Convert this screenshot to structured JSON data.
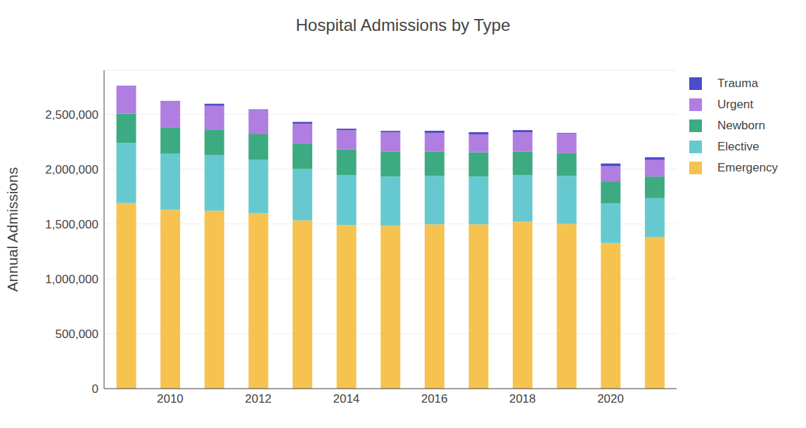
{
  "chart_data": {
    "type": "bar",
    "title": "Hospital Admissions by Type",
    "y_label": "Annual Admissions",
    "categories": [
      null,
      "2010",
      null,
      "2012",
      null,
      "2014",
      null,
      "2016",
      null,
      "2018",
      null,
      "2020",
      null
    ],
    "series": [
      {
        "name": "Emergency",
        "color": "#f6c350",
        "values": [
          1692000,
          1629000,
          1622000,
          1597000,
          1534000,
          1490000,
          1484000,
          1496000,
          1496000,
          1521000,
          1502000,
          1326000,
          1383000
        ]
      },
      {
        "name": "Elective",
        "color": "#66c9d0",
        "values": [
          549000,
          511000,
          505000,
          486000,
          467000,
          454000,
          448000,
          442000,
          436000,
          423000,
          436000,
          360000,
          353000
        ]
      },
      {
        "name": "Newborn",
        "color": "#3dab82",
        "values": [
          265000,
          240000,
          234000,
          234000,
          227000,
          234000,
          227000,
          221000,
          221000,
          215000,
          208000,
          202000,
          196000
        ]
      },
      {
        "name": "Urgent",
        "color": "#b07ee0",
        "values": [
          251000,
          234000,
          215000,
          221000,
          184000,
          177000,
          177000,
          171000,
          164000,
          177000,
          177000,
          138000,
          151000
        ]
      },
      {
        "name": "Trauma",
        "color": "#4c4cc8",
        "values": [
          3000,
          6000,
          19000,
          6000,
          18000,
          13000,
          12000,
          19000,
          19000,
          19000,
          6000,
          25000,
          25000
        ]
      }
    ],
    "ylim": [
      0,
      2900000
    ],
    "yticks": [
      0,
      {
        "value": 500000,
        "label": "500,000"
      },
      {
        "value": 1000000,
        "label": "1,000,000"
      },
      {
        "value": 1500000,
        "label": "1,500,000"
      },
      {
        "value": 2000000,
        "label": "2,000,000"
      },
      {
        "value": 2500000,
        "label": "2,500,000"
      }
    ],
    "stacked": true,
    "grid": true,
    "legend": "right"
  }
}
